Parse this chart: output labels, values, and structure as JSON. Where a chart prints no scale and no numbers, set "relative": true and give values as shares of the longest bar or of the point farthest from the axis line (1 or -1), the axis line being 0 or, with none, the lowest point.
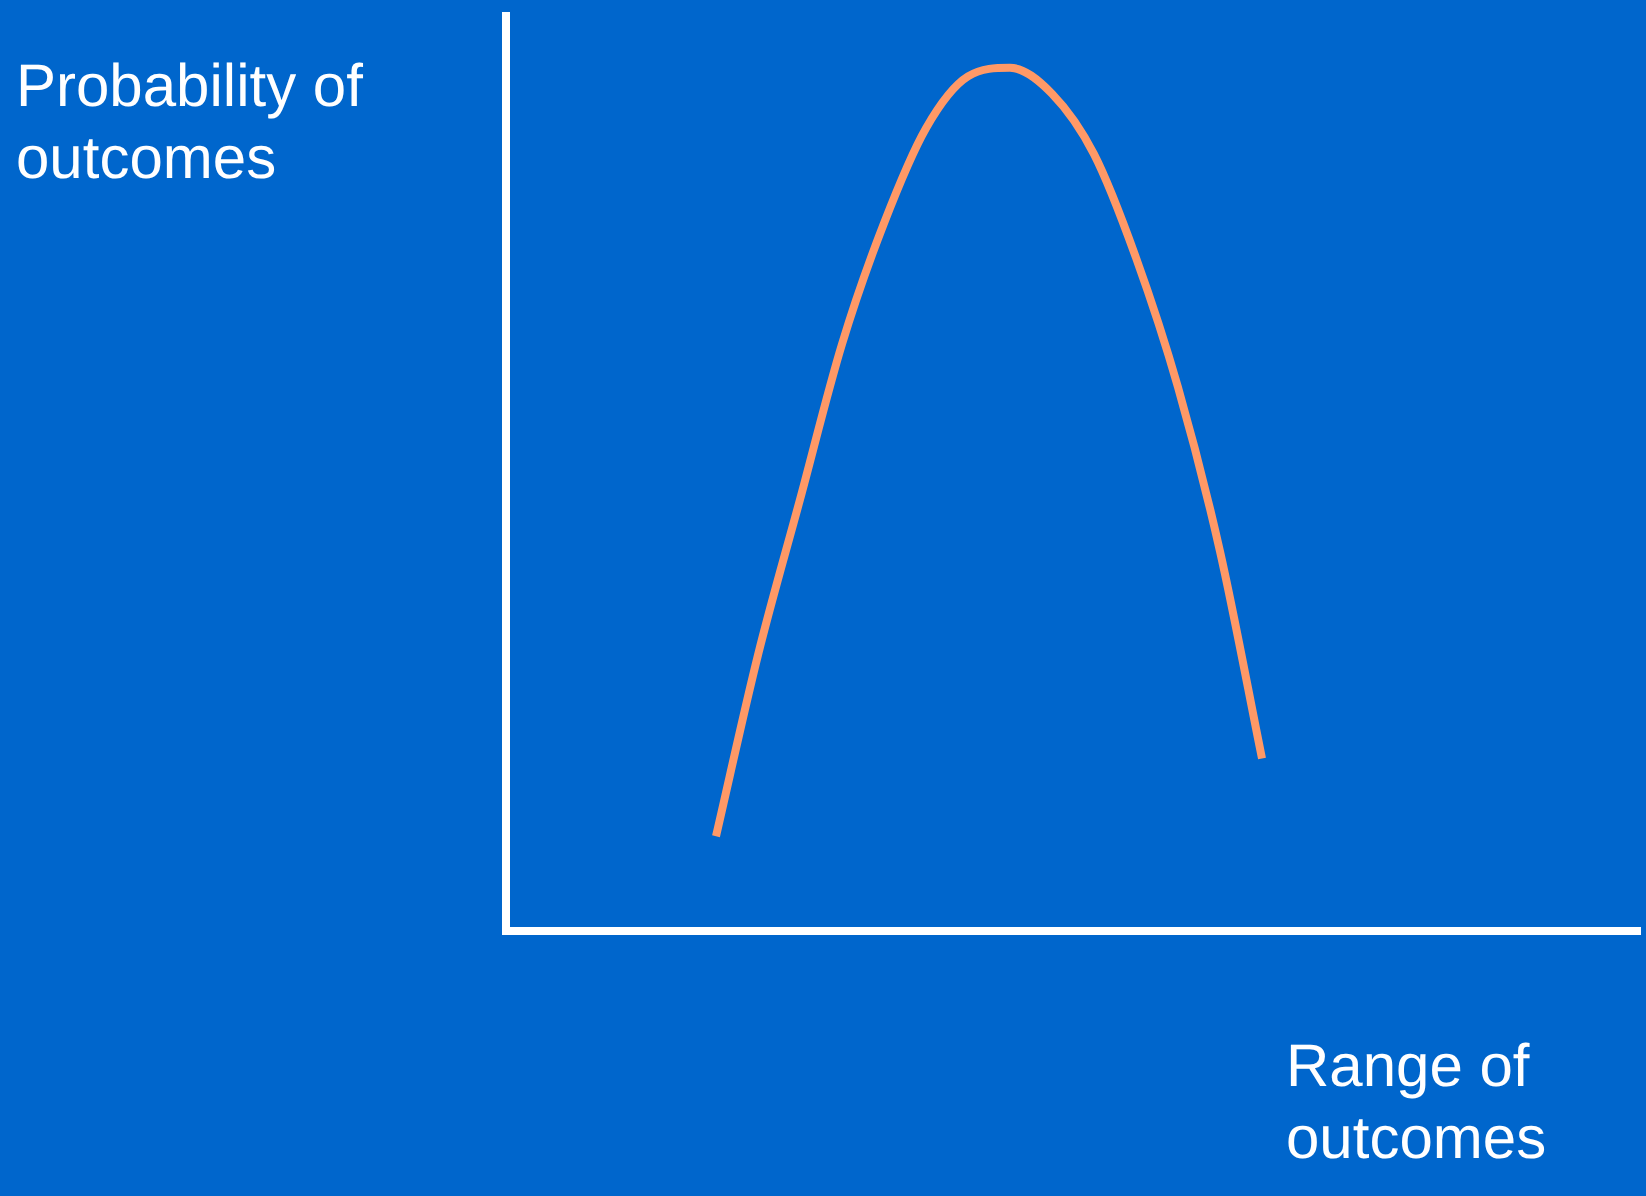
{
  "chart_data": {
    "type": "line",
    "ylabel": "Probability of\noutcomes",
    "xlabel": "Range of\noutcomes",
    "relative": true,
    "marker": "none",
    "line_style": "solid",
    "color": "#ff9966",
    "categories": [
      null,
      null,
      null,
      null,
      null,
      null,
      null,
      null,
      null,
      null,
      null,
      null,
      null,
      null,
      null,
      null,
      null,
      null,
      null,
      null,
      null,
      null,
      null,
      null,
      null,
      null,
      null,
      null
    ],
    "values": [
      null,
      null,
      null,
      null,
      null,
      0.11,
      0.32,
      0.5,
      0.68,
      0.82,
      0.93,
      0.99,
      1.0,
      0.97,
      0.9,
      0.78,
      0.63,
      0.44,
      0.2,
      null,
      null,
      null,
      null,
      null,
      null,
      null,
      null,
      null
    ]
  }
}
